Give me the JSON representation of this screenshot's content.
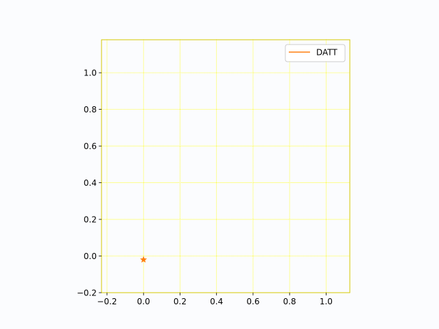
{
  "chart_data": {
    "type": "line",
    "title": "",
    "xlabel": "",
    "ylabel": "",
    "xlim": [
      -0.23,
      1.13
    ],
    "ylim": [
      -0.2,
      1.18
    ],
    "x_ticks": [
      -0.2,
      0.0,
      0.2,
      0.4,
      0.6,
      0.8,
      1.0
    ],
    "y_ticks": [
      -0.2,
      0.0,
      0.2,
      0.4,
      0.6,
      0.8,
      1.0
    ],
    "x_tick_labels": [
      "−0.2",
      "0.0",
      "0.2",
      "0.4",
      "0.6",
      "0.8",
      "1.0"
    ],
    "y_tick_labels": [
      "−0.2",
      "0.0",
      "0.2",
      "0.4",
      "0.6",
      "0.8",
      "1.0"
    ],
    "grid": true,
    "grid_color": "#ffff00",
    "axis_color": "#d4c700",
    "legend_position": "top-right",
    "series": [
      {
        "name": "DATT",
        "color": "#ff7f0e",
        "marker": "star",
        "x": [
          0.0
        ],
        "y": [
          -0.02
        ]
      }
    ]
  }
}
